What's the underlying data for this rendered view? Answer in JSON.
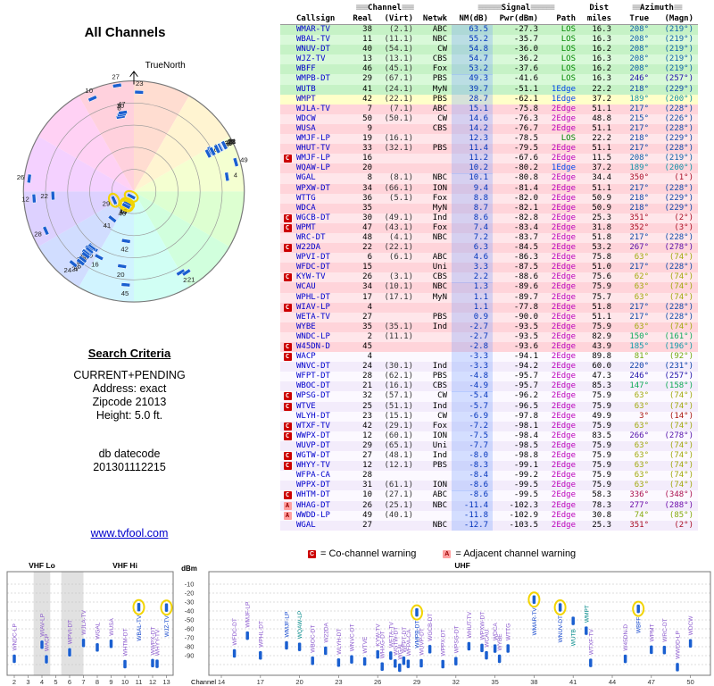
{
  "radar": {
    "title": "All Channels",
    "north_label": "TrueNorth"
  },
  "search": {
    "heading": "Search Criteria",
    "lines": [
      "CURRENT+PENDING",
      "Address: exact",
      "Zipcode 21013",
      "Height: 5.0 ft."
    ],
    "db_lines": [
      "db datecode",
      "201301112215"
    ]
  },
  "link_text": "www.tvfool.com",
  "table": {
    "groups": {
      "channel": "Channel",
      "signal": "Signal",
      "dist": "Dist",
      "azimuth": "Azimuth",
      "bar3": "≡≡≡",
      "bar6": "≡≡≡≡≡≡",
      "bar2": "≡≡"
    },
    "cols": {
      "callsign": "Callsign",
      "real": "Real",
      "virt": "(Virt)",
      "netwk": "Netwk",
      "nm": "NM(dB)",
      "pwr": "Pwr(dBm)",
      "path": "Path",
      "miles": "miles",
      "true": "True",
      "magn": "(Magn)"
    },
    "row_fields": [
      "flag",
      "callsign",
      "real",
      "virt",
      "netwk",
      "nm_db",
      "pwr_dbm",
      "path",
      "miles",
      "az_true",
      "az_magn",
      "highlight"
    ],
    "rows": [
      [
        "",
        "WMAR-TV",
        38,
        "(2.1)",
        "ABC",
        63.5,
        -27.3,
        "LOS",
        16.3,
        208,
        219,
        true
      ],
      [
        "",
        "WBAL-TV",
        11,
        "(11.1)",
        "NBC",
        55.2,
        -35.7,
        "LOS",
        16.3,
        208,
        219,
        true
      ],
      [
        "",
        "WNUV-DT",
        40,
        "(54.1)",
        "CW",
        54.8,
        -36.0,
        "LOS",
        16.2,
        208,
        219,
        true
      ],
      [
        "",
        "WJZ-TV",
        13,
        "(13.1)",
        "CBS",
        54.7,
        -36.2,
        "LOS",
        16.3,
        208,
        219,
        true
      ],
      [
        "",
        "WBFF",
        46,
        "(45.1)",
        "Fox",
        53.2,
        -37.6,
        "LOS",
        16.2,
        208,
        219,
        true
      ],
      [
        "",
        "WMPB-DT",
        29,
        "(67.1)",
        "PBS",
        49.3,
        -41.6,
        "LOS",
        16.3,
        246,
        257,
        true
      ],
      [
        "",
        "WUTB",
        41,
        "(24.1)",
        "MyN",
        39.7,
        -51.1,
        "1Edge",
        22.2,
        218,
        229,
        false
      ],
      [
        "",
        "WMPT",
        42,
        "(22.1)",
        "PBS",
        28.7,
        -62.1,
        "1Edge",
        37.2,
        189,
        200,
        false
      ],
      [
        "",
        "WJLA-TV",
        7,
        "(7.1)",
        "ABC",
        15.1,
        -75.8,
        "2Edge",
        51.1,
        217,
        228,
        false
      ],
      [
        "",
        "WDCW",
        50,
        "(50.1)",
        "CW",
        14.6,
        -76.3,
        "2Edge",
        48.8,
        215,
        226,
        false
      ],
      [
        "",
        "WUSA",
        9,
        "",
        "CBS",
        14.2,
        -76.7,
        "2Edge",
        51.1,
        217,
        228,
        false
      ],
      [
        "",
        "WMJF-LP",
        19,
        "(16.1)",
        "",
        12.3,
        -78.5,
        "LOS",
        22.2,
        218,
        229,
        false
      ],
      [
        "",
        "WHUT-TV",
        33,
        "(32.1)",
        "PBS",
        11.4,
        -79.5,
        "2Edge",
        51.1,
        217,
        228,
        false
      ],
      [
        "C",
        "WMJF-LP",
        16,
        "",
        "",
        11.2,
        -67.6,
        "2Edge",
        11.5,
        208,
        219,
        false
      ],
      [
        "",
        "WQAW-LP",
        20,
        "",
        "",
        10.2,
        -80.2,
        "1Edge",
        37.2,
        189,
        200,
        false
      ],
      [
        "",
        "WGAL",
        8,
        "(8.1)",
        "NBC",
        10.1,
        -80.8,
        "2Edge",
        34.4,
        350,
        1,
        false
      ],
      [
        "",
        "WPXW-DT",
        34,
        "(66.1)",
        "ION",
        9.4,
        -81.4,
        "2Edge",
        51.1,
        217,
        228,
        false
      ],
      [
        "",
        "WTTG",
        36,
        "(5.1)",
        "Fox",
        8.8,
        -82.0,
        "2Edge",
        50.9,
        218,
        229,
        false
      ],
      [
        "",
        "WDCA",
        35,
        "",
        "MyN",
        8.7,
        -82.1,
        "2Edge",
        50.9,
        218,
        229,
        false
      ],
      [
        "C",
        "WGCB-DT",
        30,
        "(49.1)",
        "Ind",
        8.6,
        -82.8,
        "2Edge",
        25.3,
        351,
        2,
        false
      ],
      [
        "C",
        "WPMT",
        47,
        "(43.1)",
        "Fox",
        7.4,
        -83.4,
        "2Edge",
        31.8,
        352,
        3,
        false
      ],
      [
        "",
        "WRC-DT",
        48,
        "(4.1)",
        "NBC",
        7.2,
        -83.7,
        "2Edge",
        51.8,
        217,
        228,
        false
      ],
      [
        "C",
        "W22DA",
        22,
        "(22.1)",
        "",
        6.3,
        -84.5,
        "2Edge",
        53.2,
        267,
        278,
        false
      ],
      [
        "",
        "WPVI-DT",
        6,
        "(6.1)",
        "ABC",
        4.6,
        -86.3,
        "2Edge",
        75.8,
        63,
        74,
        false
      ],
      [
        "",
        "WFDC-DT",
        15,
        "",
        "Uni",
        3.3,
        -87.5,
        "2Edge",
        51.0,
        217,
        228,
        false
      ],
      [
        "C",
        "KYW-TV",
        26,
        "(3.1)",
        "CBS",
        2.2,
        -88.6,
        "2Edge",
        75.6,
        62,
        74,
        false
      ],
      [
        "",
        "WCAU",
        34,
        "(10.1)",
        "NBC",
        1.3,
        -89.6,
        "2Edge",
        75.9,
        63,
        74,
        false
      ],
      [
        "",
        "WPHL-DT",
        17,
        "(17.1)",
        "MyN",
        1.1,
        -89.7,
        "2Edge",
        75.7,
        63,
        74,
        false
      ],
      [
        "C",
        "WIAV-LP",
        4,
        "",
        "",
        1.1,
        -77.8,
        "2Edge",
        51.8,
        217,
        228,
        false
      ],
      [
        "",
        "WETA-TV",
        27,
        "",
        "PBS",
        0.9,
        -90.0,
        "2Edge",
        51.1,
        217,
        228,
        false
      ],
      [
        "",
        "WYBE",
        35,
        "(35.1)",
        "Ind",
        -2.7,
        -93.5,
        "2Edge",
        75.9,
        63,
        74,
        false
      ],
      [
        "",
        "WNDC-LP",
        2,
        "(11.1)",
        "",
        -2.7,
        -93.5,
        "2Edge",
        82.9,
        150,
        161,
        false
      ],
      [
        "C",
        "W45DN-D",
        45,
        "",
        "",
        -2.8,
        -93.6,
        "2Edge",
        43.9,
        185,
        196,
        false
      ],
      [
        "C",
        "WACP",
        4,
        "",
        "",
        -3.3,
        -94.1,
        "2Edge",
        89.8,
        81,
        92,
        false
      ],
      [
        "",
        "WNVC-DT",
        24,
        "(30.1)",
        "Ind",
        -3.3,
        -94.2,
        "2Edge",
        60.0,
        220,
        231,
        false
      ],
      [
        "",
        "WFPT-DT",
        28,
        "(62.1)",
        "PBS",
        -4.8,
        -95.7,
        "2Edge",
        47.3,
        246,
        257,
        false
      ],
      [
        "",
        "WBOC-DT",
        21,
        "(16.1)",
        "CBS",
        -4.9,
        -95.7,
        "2Edge",
        85.3,
        147,
        158,
        false
      ],
      [
        "C",
        "WPSG-DT",
        32,
        "(57.1)",
        "CW",
        -5.4,
        -96.2,
        "2Edge",
        75.9,
        63,
        74,
        false
      ],
      [
        "C",
        "WTVE",
        25,
        "(51.1)",
        "Ind",
        -5.7,
        -96.5,
        "2Edge",
        75.9,
        63,
        74,
        false
      ],
      [
        "",
        "WLYH-DT",
        23,
        "(15.1)",
        "CW",
        -6.9,
        -97.8,
        "2Edge",
        49.9,
        3,
        14,
        false
      ],
      [
        "C",
        "WTXF-TV",
        42,
        "(29.1)",
        "Fox",
        -7.2,
        -98.1,
        "2Edge",
        75.9,
        63,
        74,
        false
      ],
      [
        "C",
        "WWPX-DT",
        12,
        "(60.1)",
        "ION",
        -7.5,
        -98.4,
        "2Edge",
        83.5,
        266,
        278,
        false
      ],
      [
        "",
        "WUVP-DT",
        29,
        "(65.1)",
        "Uni",
        -7.7,
        -98.5,
        "2Edge",
        75.9,
        63,
        74,
        false
      ],
      [
        "C",
        "WGTW-DT",
        27,
        "(48.1)",
        "Ind",
        -8.0,
        -98.8,
        "2Edge",
        75.9,
        63,
        74,
        false
      ],
      [
        "C",
        "WHYY-TV",
        12,
        "(12.1)",
        "PBS",
        -8.3,
        -99.1,
        "2Edge",
        75.9,
        63,
        74,
        false
      ],
      [
        "",
        "WFPA-CA",
        28,
        "",
        "",
        -8.4,
        -99.2,
        "2Edge",
        75.9,
        63,
        74,
        false
      ],
      [
        "",
        "WPPX-DT",
        31,
        "(61.1)",
        "ION",
        -8.6,
        -99.5,
        "2Edge",
        75.9,
        63,
        74,
        false
      ],
      [
        "C",
        "WHTM-DT",
        10,
        "(27.1)",
        "ABC",
        -8.6,
        -99.5,
        "2Edge",
        58.3,
        336,
        348,
        false
      ],
      [
        "A",
        "WHAG-DT",
        26,
        "(25.1)",
        "NBC",
        -11.4,
        -102.3,
        "2Edge",
        78.3,
        277,
        288,
        false
      ],
      [
        "A",
        "WWDD-LP",
        49,
        "(40.1)",
        "",
        -11.8,
        -102.9,
        "2Edge",
        30.8,
        74,
        85,
        false
      ],
      [
        "",
        "WGAL",
        27,
        "",
        "NBC",
        -12.7,
        -103.5,
        "2Edge",
        25.3,
        351,
        2,
        false
      ]
    ]
  },
  "legend": {
    "c": "C",
    "c_text": "= Co-channel warning",
    "a": "A",
    "a_text": "= Adjacent channel warning"
  },
  "chart_data": {
    "type": "scatter",
    "xlabel": "Channel",
    "ylabel": "dBm",
    "ylim": [
      -110,
      0
    ],
    "yticks": [
      -10,
      -20,
      -30,
      -40,
      -50,
      -60,
      -70,
      -80,
      -90
    ],
    "bands": [
      {
        "label": "VHF Lo",
        "ch": [
          2,
          6
        ]
      },
      {
        "label": "VHF Hi",
        "ch": [
          7,
          13
        ]
      },
      {
        "label": "UHF",
        "ch": [
          14,
          51
        ]
      }
    ],
    "points_fields": [
      "callsign",
      "channel",
      "dbm"
    ],
    "points": [
      [
        "WMAR-TV",
        38,
        -27.3
      ],
      [
        "WBAL-TV",
        11,
        -35.7
      ],
      [
        "WNUV-DT",
        40,
        -36.0
      ],
      [
        "WJZ-TV",
        13,
        -36.2
      ],
      [
        "WBFF",
        46,
        -37.6
      ],
      [
        "WMPB-DT",
        29,
        -41.6
      ],
      [
        "WUTB",
        41,
        -51.1
      ],
      [
        "WMPT",
        42,
        -62.1
      ],
      [
        "WJLA-TV",
        7,
        -75.8
      ],
      [
        "WDCW",
        50,
        -76.3
      ],
      [
        "WUSA",
        9,
        -76.7
      ],
      [
        "WMJF-LP",
        19,
        -78.5
      ],
      [
        "WHUT-TV",
        33,
        -79.5
      ],
      [
        "WMJF-LP",
        16,
        -67.6
      ],
      [
        "WQAW-LP",
        20,
        -80.2
      ],
      [
        "WGAL",
        8,
        -80.8
      ],
      [
        "WPXW-DT",
        34,
        -81.4
      ],
      [
        "WTTG",
        36,
        -82.0
      ],
      [
        "WDCA",
        35,
        -82.1
      ],
      [
        "WGCB-DT",
        30,
        -82.8
      ],
      [
        "WPMT",
        47,
        -83.4
      ],
      [
        "WRC-DT",
        48,
        -83.7
      ],
      [
        "W22DA",
        22,
        -84.5
      ],
      [
        "WPVI-DT",
        6,
        -86.3
      ],
      [
        "WFDC-DT",
        15,
        -87.5
      ],
      [
        "KYW-TV",
        26,
        -88.6
      ],
      [
        "WCAU",
        34,
        -89.6
      ],
      [
        "WPHL-DT",
        17,
        -89.7
      ],
      [
        "WIAV-LP",
        4,
        -77.8
      ],
      [
        "WETA-TV",
        27,
        -90.0
      ],
      [
        "WYBE",
        35,
        -93.5
      ],
      [
        "WNDC-LP",
        2,
        -93.5
      ],
      [
        "W45DN-D",
        45,
        -93.6
      ],
      [
        "WACP",
        4,
        -94.1
      ],
      [
        "WNVC-DT",
        24,
        -94.2
      ],
      [
        "WFPT-DT",
        28,
        -95.7
      ],
      [
        "WBOC-DT",
        21,
        -95.7
      ],
      [
        "WPSG-DT",
        32,
        -96.2
      ],
      [
        "WTVE",
        25,
        -96.5
      ],
      [
        "WLYH-DT",
        23,
        -97.8
      ],
      [
        "WTXF-TV",
        42,
        -98.1
      ],
      [
        "WWPX-DT",
        12,
        -98.4
      ],
      [
        "WUVP-DT",
        29,
        -98.5
      ],
      [
        "WGTW-DT",
        27,
        -98.8
      ],
      [
        "WHYY-TV",
        12,
        -99.1
      ],
      [
        "WFPA-CA",
        28,
        -99.2
      ],
      [
        "WPPX-DT",
        31,
        -99.5
      ],
      [
        "WHTM-DT",
        10,
        -99.5
      ],
      [
        "WHAG-DT",
        26,
        -102.3
      ],
      [
        "WWDD-LP",
        49,
        -102.9
      ],
      [
        "WGAL",
        27,
        -103.5
      ]
    ]
  }
}
